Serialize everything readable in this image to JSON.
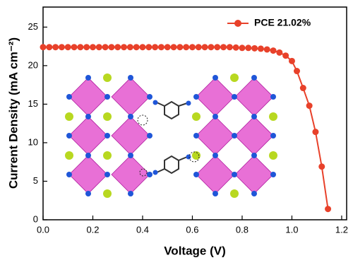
{
  "chart_data": {
    "type": "line",
    "x_label": "Voltage (V)",
    "y_label": "Current Density (mA cm⁻²)",
    "xlim": [
      0,
      1.22
    ],
    "ylim": [
      0,
      27.6
    ],
    "xticks": [
      {
        "value": 0,
        "label": "0.0"
      },
      {
        "value": 0.2,
        "label": "0.2"
      },
      {
        "value": 0.4,
        "label": "0.4"
      },
      {
        "value": 0.6,
        "label": "0.6"
      },
      {
        "value": 0.8,
        "label": "0.8"
      },
      {
        "value": 1.0,
        "label": "1.0"
      },
      {
        "value": 1.2,
        "label": "1.2"
      }
    ],
    "yticks": [
      0,
      5,
      10,
      15,
      20,
      25
    ],
    "legend": "upper right",
    "x": [
      0,
      0.025,
      0.05,
      0.075,
      0.1,
      0.125,
      0.15,
      0.175,
      0.2,
      0.225,
      0.25,
      0.275,
      0.3,
      0.325,
      0.35,
      0.375,
      0.4,
      0.425,
      0.45,
      0.475,
      0.5,
      0.525,
      0.55,
      0.575,
      0.6,
      0.625,
      0.65,
      0.675,
      0.7,
      0.725,
      0.75,
      0.775,
      0.8,
      0.825,
      0.85,
      0.875,
      0.9,
      0.925,
      0.95,
      0.975,
      1.0,
      1.02,
      1.045,
      1.07,
      1.095,
      1.12,
      1.145
    ],
    "series": [
      {
        "name": "PCE 21.02%",
        "color": "#e8412a",
        "values": [
          22.4,
          22.4,
          22.4,
          22.4,
          22.4,
          22.4,
          22.4,
          22.4,
          22.4,
          22.4,
          22.4,
          22.4,
          22.4,
          22.4,
          22.4,
          22.4,
          22.4,
          22.4,
          22.4,
          22.4,
          22.4,
          22.4,
          22.4,
          22.4,
          22.4,
          22.4,
          22.4,
          22.4,
          22.4,
          22.4,
          22.4,
          22.35,
          22.3,
          22.3,
          22.25,
          22.2,
          22.1,
          21.95,
          21.7,
          21.3,
          20.6,
          19.3,
          17.1,
          14.8,
          11.4,
          6.9,
          1.4
        ]
      }
    ]
  }
}
